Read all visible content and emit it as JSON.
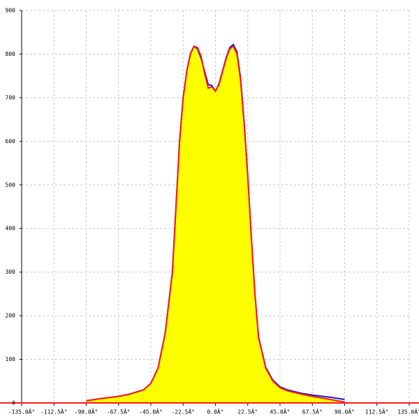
{
  "chart_data": {
    "type": "area",
    "x": [
      -90,
      -80,
      -67.5,
      -60,
      -50,
      -45,
      -40,
      -35,
      -30,
      -27.5,
      -25,
      -22.5,
      -20,
      -17.5,
      -15,
      -12.5,
      -10,
      -7.5,
      -5,
      -2.5,
      0,
      2.5,
      5,
      7.5,
      10,
      12.5,
      15,
      17.5,
      20,
      22.5,
      25,
      27.5,
      30,
      35,
      40,
      45,
      50,
      60,
      67.5,
      80,
      90
    ],
    "series": [
      {
        "name": "blue",
        "color": "#1a1acc",
        "values": [
          5,
          10,
          15,
          20,
          30,
          45,
          80,
          160,
          300,
          450,
          600,
          700,
          760,
          800,
          818,
          812,
          790,
          760,
          730,
          728,
          715,
          732,
          762,
          792,
          815,
          822,
          805,
          745,
          645,
          522,
          382,
          252,
          152,
          82,
          52,
          37,
          30,
          22,
          18,
          13,
          8
        ]
      },
      {
        "name": "red",
        "color": "#ff1a1a",
        "fill": "#ffff00",
        "values": [
          5,
          10,
          15,
          20,
          30,
          45,
          80,
          160,
          300,
          450,
          600,
          700,
          760,
          800,
          818,
          815,
          795,
          755,
          722,
          725,
          715,
          730,
          760,
          790,
          812,
          818,
          800,
          740,
          640,
          520,
          380,
          250,
          150,
          80,
          50,
          35,
          28,
          20,
          15,
          8,
          2
        ]
      }
    ],
    "xlim": [
      -135,
      135
    ],
    "xticks": [
      {
        "value": -135,
        "label": "-135.0Â°"
      },
      {
        "value": -112.5,
        "label": "-112.5Â°"
      },
      {
        "value": -90,
        "label": "-90.0Â°"
      },
      {
        "value": -67.5,
        "label": "-67.5Â°"
      },
      {
        "value": -45,
        "label": "-45.0Â°"
      },
      {
        "value": -22.5,
        "label": "-22.5Â°"
      },
      {
        "value": 0,
        "label": "0.0Â°"
      },
      {
        "value": 22.5,
        "label": "22.5Â°"
      },
      {
        "value": 45,
        "label": "45.0Â°"
      },
      {
        "value": 67.5,
        "label": "67.5Â°"
      },
      {
        "value": 90,
        "label": "90.0Â°"
      },
      {
        "value": 112.5,
        "label": "112.5Â°"
      },
      {
        "value": 135,
        "label": "135.0Â°"
      }
    ],
    "ylim": [
      0,
      900
    ],
    "yticks": [
      0,
      100,
      200,
      300,
      400,
      500,
      600,
      700,
      800,
      900
    ],
    "grid": true
  }
}
